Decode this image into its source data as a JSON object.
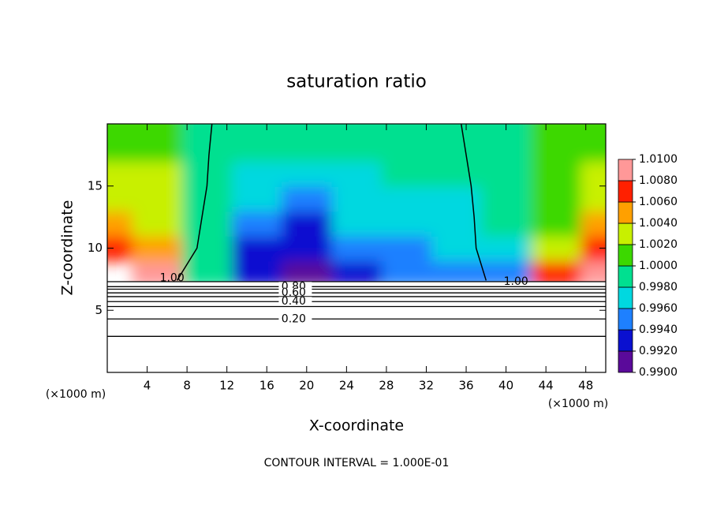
{
  "chart_data": {
    "type": "contour",
    "title": "saturation ratio",
    "x_label": "X-coordinate",
    "y_label": "Z-coordinate",
    "x_unit_labels": [
      "(×1000 m)",
      "(×1000 m)"
    ],
    "footer": "CONTOUR INTERVAL = 1.000E-01",
    "xlim": [
      0,
      50
    ],
    "ylim": [
      0,
      20
    ],
    "xticks": [
      4,
      8,
      12,
      16,
      20,
      24,
      28,
      32,
      36,
      40,
      44,
      48
    ],
    "yticks": [
      5,
      10,
      15
    ],
    "x": [
      0,
      5,
      10,
      15,
      20,
      25,
      30,
      35,
      40,
      45,
      50
    ],
    "z": [
      8,
      10,
      12,
      14,
      16,
      18,
      20
    ],
    "values": [
      [
        null,
        1.008,
        0.9985,
        0.9925,
        0.9915,
        0.9935,
        0.9945,
        0.9945,
        0.9955,
        1.007,
        1.009
      ],
      [
        1.007,
        1.004,
        0.999,
        0.993,
        0.992,
        0.995,
        0.995,
        0.996,
        0.997,
        1.003,
        1.006
      ],
      [
        1.004,
        1.003,
        0.9985,
        0.995,
        0.993,
        0.996,
        0.9965,
        0.997,
        0.998,
        1.001,
        1.004
      ],
      [
        1.003,
        1.002,
        0.9985,
        0.996,
        0.994,
        0.9965,
        0.997,
        0.9975,
        0.998,
        1.0005,
        1.003
      ],
      [
        1.002,
        1.002,
        0.999,
        0.997,
        0.996,
        0.997,
        0.998,
        0.998,
        0.9985,
        1.0005,
        1.002
      ],
      [
        1.001,
        1.001,
        0.9985,
        0.998,
        0.998,
        0.998,
        0.9985,
        0.9985,
        0.999,
        1.0,
        1.001
      ],
      [
        1.001,
        1.001,
        0.999,
        0.998,
        0.998,
        0.9985,
        0.9985,
        0.9985,
        0.999,
        1.0,
        1.001
      ]
    ],
    "levels": [
      {
        "value": 0.99,
        "label": "0.9900"
      },
      {
        "value": 0.992,
        "label": "0.9920"
      },
      {
        "value": 0.994,
        "label": "0.9940"
      },
      {
        "value": 0.996,
        "label": "0.9960"
      },
      {
        "value": 0.998,
        "label": "0.9980"
      },
      {
        "value": 1.0,
        "label": "1.0000"
      },
      {
        "value": 1.002,
        "label": "1.0020"
      },
      {
        "value": 1.004,
        "label": "1.0040"
      },
      {
        "value": 1.006,
        "label": "1.0060"
      },
      {
        "value": 1.008,
        "label": "1.0080"
      },
      {
        "value": 1.01,
        "label": "1.0100"
      }
    ],
    "colors": [
      "#5a0a9a",
      "#0a10d0",
      "#1e80ff",
      "#00d8e0",
      "#00e090",
      "#3cd800",
      "#c8f000",
      "#ffa000",
      "#ff2000",
      "#ff9898"
    ],
    "contour_lines": [
      {
        "z": 7.3
      },
      {
        "z": 6.9,
        "label": "0.80"
      },
      {
        "z": 6.7
      },
      {
        "z": 6.4,
        "label": "0.60"
      },
      {
        "z": 6.1
      },
      {
        "z": 5.7,
        "label": "0.40"
      },
      {
        "z": 5.3
      },
      {
        "z": 4.3,
        "label": "0.20"
      },
      {
        "z": 2.9
      }
    ],
    "unity_contours": [
      {
        "x": [
          10.5,
          10.2,
          10,
          9.5,
          9,
          7
        ],
        "z": [
          20,
          17.5,
          15,
          12.5,
          10,
          7.4
        ]
      },
      {
        "x": [
          35.5,
          36,
          36.5,
          36.8,
          37,
          38
        ],
        "z": [
          20,
          17.5,
          15,
          12.5,
          10,
          7.4
        ]
      }
    ],
    "contour_labels": [
      {
        "x": 6.5,
        "z": 7.6,
        "label": "1.00"
      },
      {
        "x": 41,
        "z": 7.3,
        "label": "1.00"
      }
    ]
  }
}
